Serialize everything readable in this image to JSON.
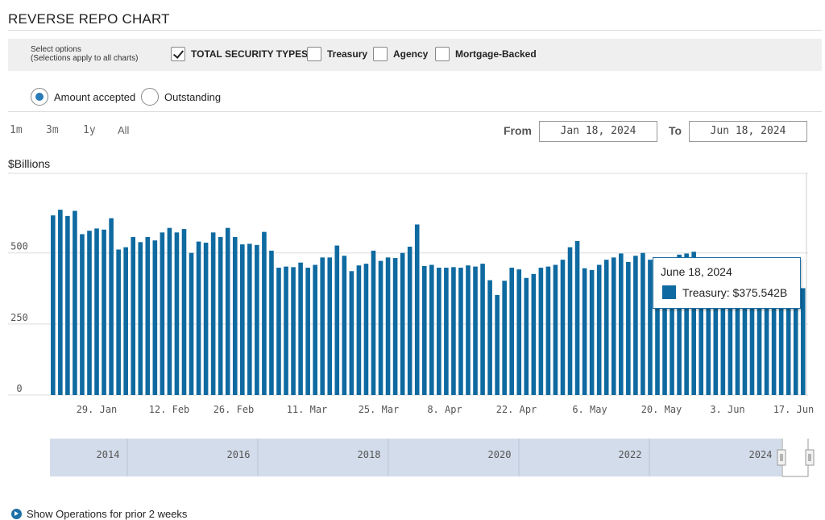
{
  "page": {
    "title": "REVERSE REPO CHART"
  },
  "options": {
    "select_label_line1": "Select options",
    "select_label_line2": "(Selections apply to all charts)",
    "checkboxes": [
      {
        "label": "TOTAL SECURITY TYPES",
        "checked": true
      },
      {
        "label": "Treasury",
        "checked": false
      },
      {
        "label": "Agency",
        "checked": false
      },
      {
        "label": "Mortgage-Backed",
        "checked": false
      }
    ],
    "radios": [
      {
        "label": "Amount accepted",
        "selected": true
      },
      {
        "label": "Outstanding",
        "selected": false
      }
    ]
  },
  "range": {
    "buttons": [
      "1m",
      "3m",
      "1y",
      "All"
    ],
    "from_label": "From",
    "from_value": "Jan 18, 2024",
    "to_label": "To",
    "to_value": "Jun 18, 2024"
  },
  "chart_data": {
    "type": "bar",
    "ylabel": "$Billions",
    "ylim": [
      0,
      780
    ],
    "yticks": [
      0,
      250,
      500
    ],
    "series": [
      {
        "name": "Treasury",
        "color": "#0e6aa0",
        "values": [
          632,
          652,
          630,
          648,
          566,
          578,
          586,
          582,
          622,
          512,
          520,
          556,
          538,
          556,
          544,
          572,
          588,
          572,
          584,
          500,
          540,
          536,
          572,
          556,
          588,
          556,
          530,
          532,
          528,
          574,
          508,
          448,
          452,
          450,
          466,
          448,
          458,
          484,
          484,
          526,
          490,
          436,
          456,
          462,
          508,
          472,
          484,
          482,
          500,
          522,
          600,
          454,
          458,
          448,
          448,
          450,
          448,
          456,
          452,
          462,
          404,
          352,
          402,
          448,
          442,
          412,
          426,
          448,
          452,
          458,
          476,
          520,
          542,
          446,
          440,
          458,
          476,
          484,
          498,
          468,
          490,
          500,
          476,
          446,
          424,
          448,
          494,
          498,
          504,
          460,
          452,
          440,
          436,
          432,
          428,
          420,
          416,
          410,
          400,
          395,
          388,
          382,
          378,
          376
        ]
      }
    ],
    "x_tick_labels": [
      "29. Jan",
      "12. Feb",
      "26. Feb",
      "11. Mar",
      "25. Mar",
      "8. Apr",
      "22. Apr",
      "6. May",
      "20. May",
      "3. Jun",
      "17. Jun"
    ],
    "navigator_years": [
      "2014",
      "2016",
      "2018",
      "2020",
      "2022",
      "2024"
    ],
    "tooltip": {
      "date": "June 18, 2024",
      "series_label": "Treasury:",
      "value_text": "$375.542B"
    }
  },
  "footer": {
    "prior_ops_label": "Show Operations for prior 2 weeks"
  }
}
